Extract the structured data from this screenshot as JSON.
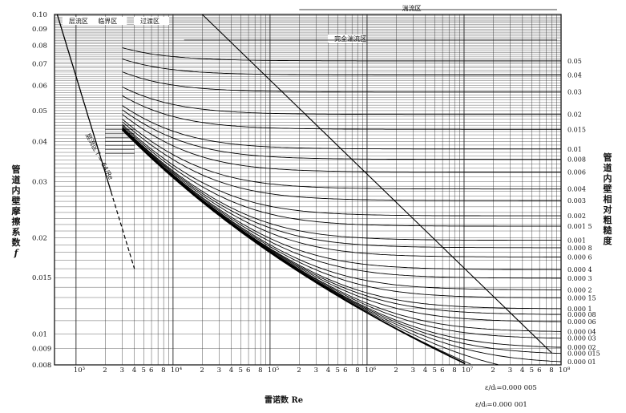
{
  "chart_data": {
    "type": "line",
    "xlabel": "雷诺数 Re",
    "ylabel": "管道内壁摩擦系数 f",
    "y2label": "管道内壁相对粗糙度",
    "xscale": "log",
    "yscale": "log",
    "xlim": [
      600,
      100000000
    ],
    "ylim": [
      0.008,
      0.1
    ],
    "grid": true,
    "y_ticks": [
      "0.10",
      "0.09",
      "0.08",
      "0.07",
      "0.06",
      "0.05",
      "0.04",
      "0.03",
      "0.02",
      "0.015",
      "0.01",
      "0.009",
      "0.008"
    ],
    "y_tick_values": [
      0.1,
      0.09,
      0.08,
      0.07,
      0.06,
      0.05,
      0.04,
      0.03,
      0.02,
      0.015,
      0.01,
      0.009,
      0.008
    ],
    "x_ticks": [
      "10³",
      "2",
      "3",
      "4",
      "5",
      "6",
      "8",
      "10⁴",
      "2",
      "3",
      "4",
      "5",
      "6",
      "8",
      "10⁵",
      "2",
      "3",
      "4",
      "5",
      "6",
      "8",
      "10⁶",
      "2",
      "3",
      "4",
      "5",
      "6",
      "8",
      "10⁷",
      "2",
      "3",
      "4",
      "5",
      "6",
      "8",
      "10⁸"
    ],
    "x_tick_values": [
      1000,
      2000,
      3000,
      4000,
      5000,
      6000,
      8000,
      10000,
      20000,
      30000,
      40000,
      50000,
      60000,
      80000,
      100000,
      200000,
      300000,
      400000,
      500000,
      600000,
      800000,
      1000000,
      2000000,
      3000000,
      4000000,
      5000000,
      6000000,
      8000000,
      10000000,
      20000000,
      30000000,
      40000000,
      50000000,
      60000000,
      80000000,
      100000000
    ],
    "right_ticks": [
      "0.05",
      "0.04",
      "0.03",
      "0.02",
      "0.015",
      "0.01",
      "0.008",
      "0.006",
      "0.004",
      "0.003",
      "0.002",
      "0.001 5",
      "0.001",
      "0.000 8",
      "0.000 6",
      "0.000 4",
      "0.000 3",
      "0.000 2",
      "0.000 15",
      "0.000 1",
      "0.000 08",
      "0.000 06",
      "0.000 04",
      "0.000 03",
      "0.000 02",
      "0.000 015",
      "0.000 01"
    ],
    "roughness_values": [
      0.05,
      0.04,
      0.03,
      0.02,
      0.015,
      0.01,
      0.008,
      0.006,
      0.004,
      0.003,
      0.002,
      0.0015,
      0.001,
      0.0008,
      0.0006,
      0.0004,
      0.0003,
      0.0002,
      0.00015,
      0.0001,
      8e-05,
      6e-05,
      4e-05,
      3e-05,
      2e-05,
      1.5e-05,
      1e-05
    ],
    "extra_roughness": [
      5e-06,
      1e-06
    ],
    "laminar": {
      "label": "层流区 f = 64/Re",
      "formula": "f = 64/Re"
    },
    "zones": [
      "层流区",
      "临界区",
      "过渡区",
      "湍流区",
      "完全湍流区"
    ],
    "annotations": [
      "ε/dᵢ = 0.000 005",
      "ε/dᵢ = 0.000 001"
    ]
  },
  "labels": {
    "y_axis": "管道内壁摩擦系数",
    "y_axis_symbol": "f",
    "y2_axis": "管道内壁相对粗糙度",
    "x_axis": "雷诺数 Re",
    "note1": "ε/dᵢ=0.000 005",
    "note2": "ε/dᵢ=0.000 001"
  }
}
